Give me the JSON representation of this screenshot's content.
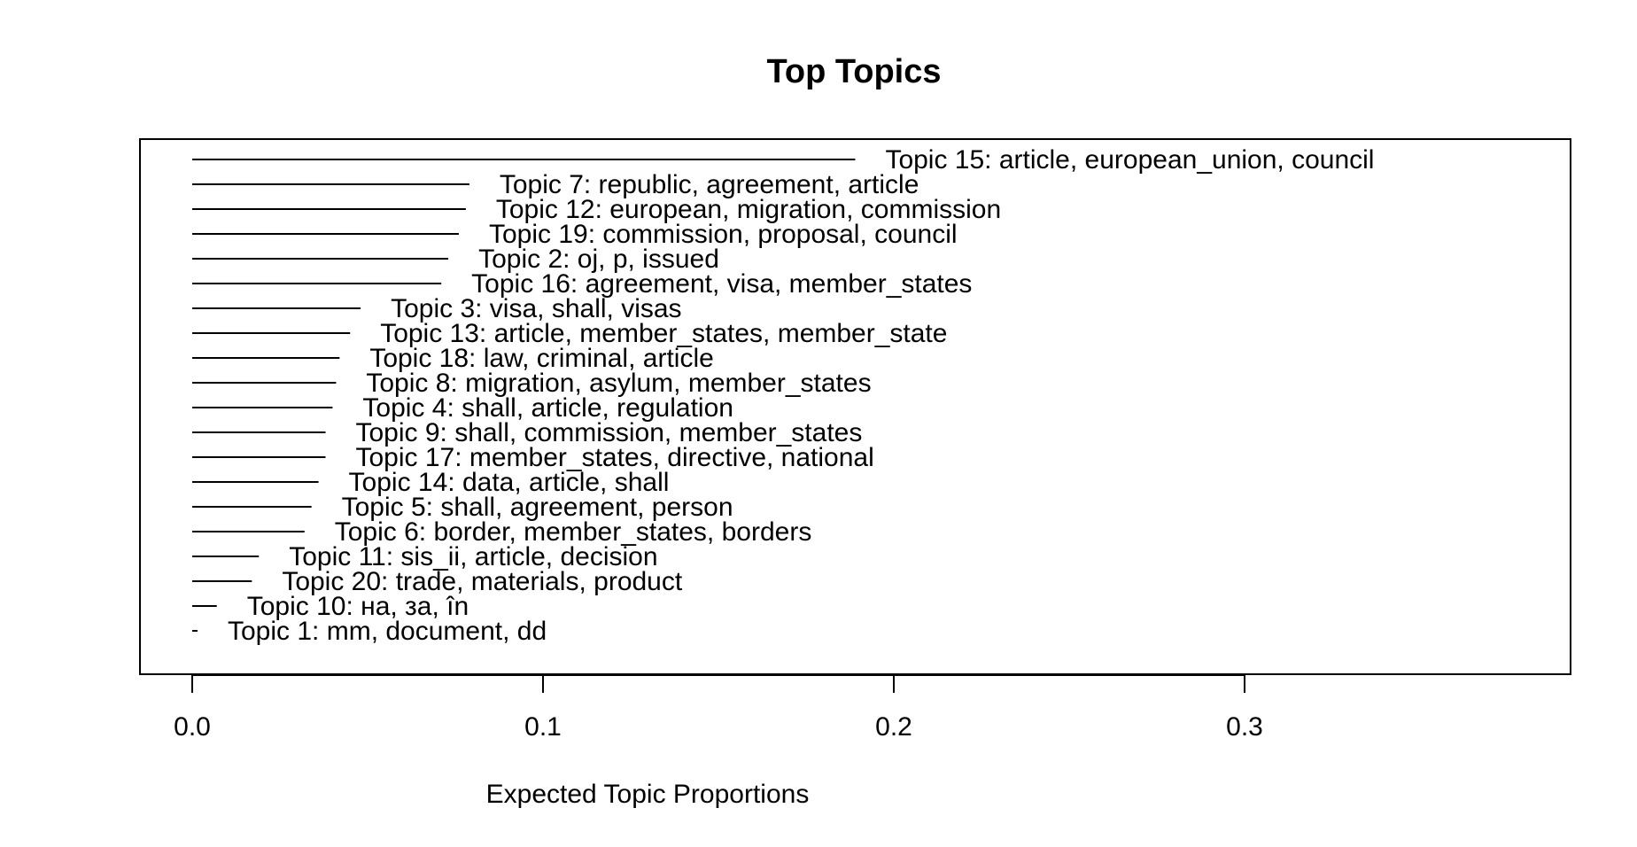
{
  "chart_data": {
    "type": "bar",
    "orientation": "horizontal",
    "title": "Top Topics",
    "xlabel": "Expected Topic Proportions",
    "ylabel": "",
    "xlim": [
      0,
      0.39
    ],
    "x_ticks": [
      "0.0",
      "0.1",
      "0.2",
      "0.3"
    ],
    "x_tick_values": [
      0.0,
      0.1,
      0.2,
      0.3
    ],
    "grid": false,
    "bar_color": "#000000",
    "topics": [
      {
        "label": "Topic 15: article, european_union, council",
        "value": 0.189
      },
      {
        "label": "Topic 7: republic, agreement, article",
        "value": 0.079
      },
      {
        "label": "Topic 12: european, migration, commission",
        "value": 0.078
      },
      {
        "label": "Topic 19: commission, proposal, council",
        "value": 0.076
      },
      {
        "label": "Topic 2: oj, p, issued",
        "value": 0.073
      },
      {
        "label": "Topic 16: agreement, visa, member_states",
        "value": 0.071
      },
      {
        "label": "Topic 3: visa, shall, visas",
        "value": 0.048
      },
      {
        "label": "Topic 13: article, member_states, member_state",
        "value": 0.045
      },
      {
        "label": "Topic 18: law, criminal, article",
        "value": 0.042
      },
      {
        "label": "Topic 8: migration, asylum, member_states",
        "value": 0.041
      },
      {
        "label": "Topic 4: shall, article, regulation",
        "value": 0.04
      },
      {
        "label": "Topic 9: shall, commission, member_states",
        "value": 0.038
      },
      {
        "label": "Topic 17: member_states, directive, national",
        "value": 0.038
      },
      {
        "label": "Topic 14: data, article, shall",
        "value": 0.036
      },
      {
        "label": "Topic 5: shall, agreement, person",
        "value": 0.034
      },
      {
        "label": "Topic 6: border, member_states, borders",
        "value": 0.032
      },
      {
        "label": "Topic 11: sis_ii, article, decision",
        "value": 0.019
      },
      {
        "label": "Topic 20: trade, materials, product",
        "value": 0.017
      },
      {
        "label": "Topic 10: на, за, în",
        "value": 0.007
      },
      {
        "label": "Topic 1: mm, document, dd",
        "value": 0.001
      }
    ]
  }
}
